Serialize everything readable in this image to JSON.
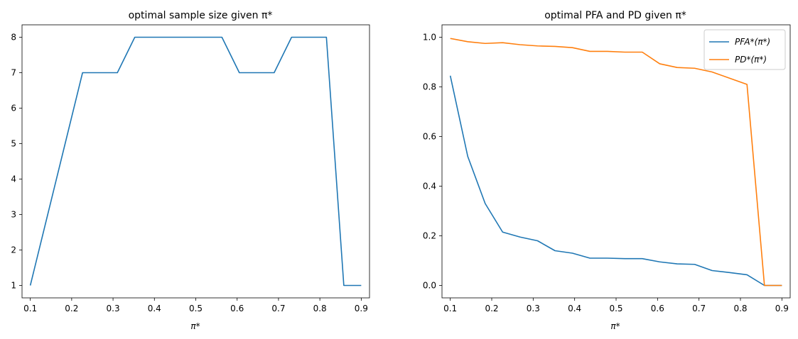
{
  "chart_data": [
    {
      "type": "line",
      "title": "optimal sample size given π*",
      "xlabel": "π*",
      "ylabel": "",
      "xlim": [
        0.08,
        0.92
      ],
      "ylim": [
        0.65,
        8.35
      ],
      "xticks": [
        "0.1",
        "0.2",
        "0.3",
        "0.4",
        "0.5",
        "0.6",
        "0.7",
        "0.8",
        "0.9"
      ],
      "yticks": [
        "1",
        "2",
        "3",
        "4",
        "5",
        "6",
        "7",
        "8"
      ],
      "x": [
        0.1,
        0.1421,
        0.1842,
        0.2263,
        0.2684,
        0.3105,
        0.3526,
        0.3947,
        0.4368,
        0.4789,
        0.5211,
        0.5632,
        0.6053,
        0.6474,
        0.6895,
        0.7316,
        0.7737,
        0.8158,
        0.8579,
        0.9
      ],
      "series": [
        {
          "name": "",
          "color": "#1f77b4",
          "values": [
            1,
            3,
            5,
            7,
            7,
            7,
            8,
            8,
            8,
            8,
            8,
            8,
            7,
            7,
            7,
            8,
            8,
            8,
            1,
            1
          ]
        }
      ],
      "grid": false,
      "legend": "none"
    },
    {
      "type": "line",
      "title": "optimal PFA and PD given π*",
      "xlabel": "π*",
      "ylabel": "",
      "xlim": [
        0.08,
        0.92
      ],
      "ylim": [
        -0.05,
        1.05
      ],
      "xticks": [
        "0.1",
        "0.2",
        "0.3",
        "0.4",
        "0.5",
        "0.6",
        "0.7",
        "0.8",
        "0.9"
      ],
      "yticks": [
        "0.0",
        "0.2",
        "0.4",
        "0.6",
        "0.8",
        "1.0"
      ],
      "x": [
        0.1,
        0.1421,
        0.1842,
        0.2263,
        0.2684,
        0.3105,
        0.3526,
        0.3947,
        0.4368,
        0.4789,
        0.5211,
        0.5632,
        0.6053,
        0.6474,
        0.6895,
        0.7316,
        0.7737,
        0.8158,
        0.8579,
        0.9
      ],
      "series": [
        {
          "name": "PFA*(π*)",
          "color": "#1f77b4",
          "values": [
            0.845,
            0.52,
            0.33,
            0.215,
            0.195,
            0.18,
            0.14,
            0.13,
            0.11,
            0.11,
            0.108,
            0.108,
            0.095,
            0.087,
            0.085,
            0.06,
            0.052,
            0.043,
            0.0,
            0.0
          ]
        },
        {
          "name": "PD*(π*)",
          "color": "#ff7f0e",
          "values": [
            0.995,
            0.982,
            0.975,
            0.978,
            0.97,
            0.965,
            0.963,
            0.958,
            0.943,
            0.943,
            0.94,
            0.94,
            0.893,
            0.878,
            0.875,
            0.86,
            0.835,
            0.81,
            0.0,
            0.0
          ]
        }
      ],
      "grid": false,
      "legend": "top-right"
    }
  ]
}
